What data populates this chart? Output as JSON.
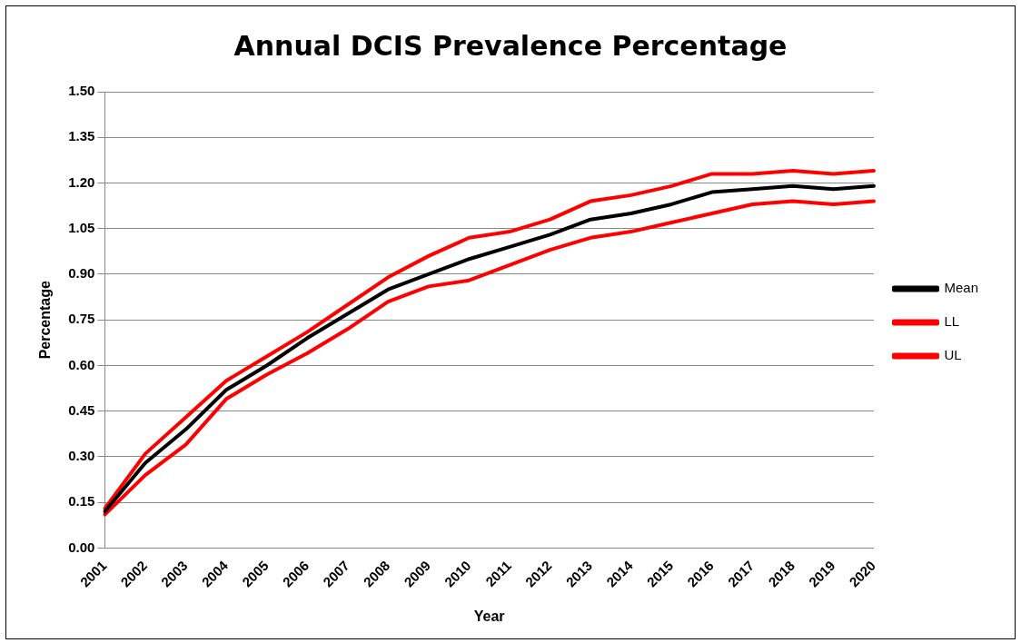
{
  "chart_data": {
    "type": "line",
    "title": "Annual DCIS Prevalence Percentage",
    "xlabel": "Year",
    "ylabel": "Percentage",
    "categories": [
      "2001",
      "2002",
      "2003",
      "2004",
      "2005",
      "2006",
      "2007",
      "2008",
      "2009",
      "2010",
      "2011",
      "2012",
      "2013",
      "2014",
      "2015",
      "2016",
      "2017",
      "2018",
      "2019",
      "2020"
    ],
    "series": [
      {
        "name": "Mean",
        "color": "#000000",
        "values": [
          0.12,
          0.28,
          0.39,
          0.52,
          0.6,
          0.69,
          0.77,
          0.85,
          0.9,
          0.95,
          0.99,
          1.03,
          1.08,
          1.1,
          1.13,
          1.17,
          1.18,
          1.19,
          1.18,
          1.19
        ]
      },
      {
        "name": "LL",
        "color": "#ff0000",
        "values": [
          0.11,
          0.24,
          0.34,
          0.49,
          0.57,
          0.64,
          0.72,
          0.81,
          0.86,
          0.88,
          0.93,
          0.98,
          1.02,
          1.04,
          1.07,
          1.1,
          1.13,
          1.14,
          1.13,
          1.14
        ]
      },
      {
        "name": "UL",
        "color": "#ff0000",
        "values": [
          0.13,
          0.31,
          0.43,
          0.55,
          0.63,
          0.71,
          0.8,
          0.89,
          0.96,
          1.02,
          1.04,
          1.08,
          1.14,
          1.16,
          1.19,
          1.23,
          1.23,
          1.24,
          1.23,
          1.24
        ]
      }
    ],
    "ylim": [
      0,
      1.5
    ],
    "yticks": [
      {
        "value": 0,
        "label": "0.00"
      },
      {
        "value": 0.15,
        "label": "0.15"
      },
      {
        "value": 0.3,
        "label": "0.30"
      },
      {
        "value": 0.45,
        "label": "0.45"
      },
      {
        "value": 0.6,
        "label": "0.60"
      },
      {
        "value": 0.75,
        "label": "0.75"
      },
      {
        "value": 0.9,
        "label": "0.90"
      },
      {
        "value": 1.05,
        "label": "1.05"
      },
      {
        "value": 1.2,
        "label": "1.20"
      },
      {
        "value": 1.35,
        "label": "1.35"
      },
      {
        "value": 1.5,
        "label": "1.50"
      }
    ],
    "grid": "y",
    "legend": "right",
    "marker": "none",
    "line_style": "solid"
  }
}
